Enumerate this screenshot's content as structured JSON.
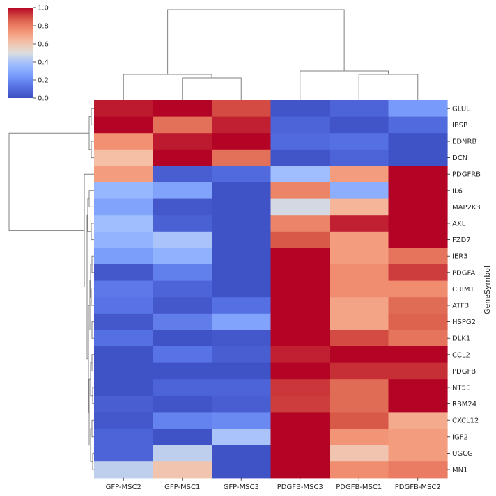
{
  "chart_data": {
    "type": "heatmap",
    "title": "",
    "xlabel": "",
    "ylabel": "GeneSymbol",
    "columns": [
      "GFP-MSC2",
      "GFP-MSC1",
      "GFP-MSC3",
      "PDGFB-MSC3",
      "PDGFB-MSC1",
      "PDGFB-MSC2"
    ],
    "rows": [
      "GLUL",
      "IBSP",
      "EDNRB",
      "DCN",
      "PDGFRB",
      "IL6",
      "MAP2K3",
      "AXL",
      "FZD7",
      "IER3",
      "PDGFA",
      "CRIM1",
      "ATF3",
      "HSPG2",
      "DLK1",
      "CCL2",
      "PDGFB",
      "NT5E",
      "RBM24",
      "CXCL12",
      "IGF2",
      "UGCG",
      "MN1"
    ],
    "values": [
      [
        0.97,
        1.0,
        0.9,
        0.03,
        0.08,
        0.25
      ],
      [
        1.0,
        0.83,
        0.96,
        0.08,
        0.03,
        0.1
      ],
      [
        0.75,
        0.97,
        1.0,
        0.1,
        0.12,
        0.02
      ],
      [
        0.62,
        1.0,
        0.83,
        0.03,
        0.08,
        0.02
      ],
      [
        0.72,
        0.06,
        0.1,
        0.38,
        0.72,
        1.0
      ],
      [
        0.35,
        0.28,
        0.02,
        0.78,
        0.32,
        1.0
      ],
      [
        0.28,
        0.04,
        0.02,
        0.48,
        0.65,
        1.0
      ],
      [
        0.38,
        0.07,
        0.02,
        0.78,
        0.96,
        1.0
      ],
      [
        0.34,
        0.4,
        0.02,
        0.88,
        0.72,
        1.0
      ],
      [
        0.26,
        0.33,
        0.02,
        1.0,
        0.72,
        0.82
      ],
      [
        0.04,
        0.17,
        0.02,
        1.0,
        0.76,
        0.92
      ],
      [
        0.15,
        0.08,
        0.02,
        1.0,
        0.76,
        0.76
      ],
      [
        0.13,
        0.04,
        0.12,
        1.0,
        0.7,
        0.84
      ],
      [
        0.04,
        0.16,
        0.28,
        1.0,
        0.7,
        0.86
      ],
      [
        0.12,
        0.02,
        0.04,
        1.0,
        0.9,
        0.82
      ],
      [
        0.02,
        0.13,
        0.06,
        0.96,
        1.0,
        1.0
      ],
      [
        0.02,
        0.02,
        0.02,
        1.0,
        0.94,
        0.94
      ],
      [
        0.02,
        0.08,
        0.08,
        0.93,
        0.84,
        1.0
      ],
      [
        0.06,
        0.03,
        0.06,
        0.92,
        0.84,
        1.0
      ],
      [
        0.04,
        0.18,
        0.2,
        1.0,
        0.88,
        0.68
      ],
      [
        0.08,
        0.02,
        0.4,
        1.0,
        0.74,
        0.72
      ],
      [
        0.08,
        0.44,
        0.02,
        1.0,
        0.6,
        0.72
      ],
      [
        0.44,
        0.6,
        0.02,
        1.0,
        0.76,
        0.8
      ]
    ],
    "colorbar": {
      "colormap": "coolwarm",
      "range": [
        0.0,
        1.0
      ],
      "ticks": [
        "0.0",
        "0.2",
        "0.4",
        "0.6",
        "0.8",
        "1.0"
      ]
    },
    "column_dendrogram_order": [
      "GFP-MSC2",
      "GFP-MSC1",
      "GFP-MSC3",
      "PDGFB-MSC3",
      "PDGFB-MSC1",
      "PDGFB-MSC2"
    ],
    "row_dendrogram": "hierarchical clustering of rows (GLUL–DCN vs PDGFRB–MN1)"
  }
}
